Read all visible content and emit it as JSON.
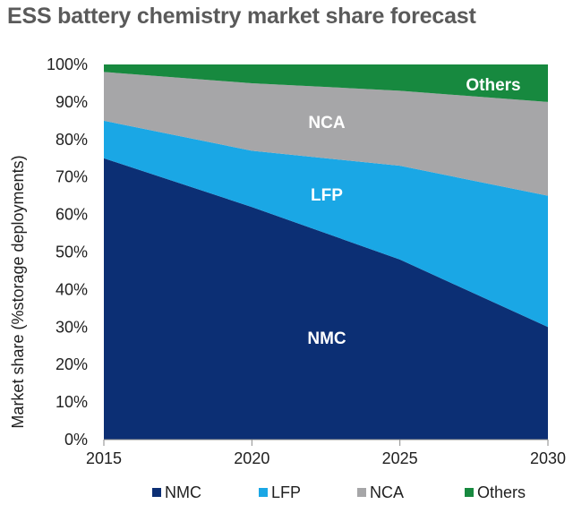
{
  "chart_data": {
    "type": "area",
    "title": "ESS battery chemistry market share forecast",
    "xlabel": "",
    "ylabel": "Market share (%storage deployments)",
    "x": [
      2015,
      2020,
      2025,
      2030
    ],
    "ylim": [
      0,
      100
    ],
    "yticks": [
      "0%",
      "10%",
      "20%",
      "30%",
      "40%",
      "50%",
      "60%",
      "70%",
      "80%",
      "90%",
      "100%"
    ],
    "xticks": [
      "2015",
      "2020",
      "2025",
      "2030"
    ],
    "stacked": true,
    "series": [
      {
        "name": "NMC",
        "values": [
          75,
          62,
          48,
          30
        ],
        "color": "#0c2f74"
      },
      {
        "name": "LFP",
        "values": [
          10,
          15,
          25,
          35
        ],
        "color": "#1aa7e5"
      },
      {
        "name": "NCA",
        "values": [
          13,
          18,
          20,
          25
        ],
        "color": "#a6a6a8"
      },
      {
        "name": "Others",
        "values": [
          2,
          5,
          7,
          10
        ],
        "color": "#17893f"
      }
    ],
    "area_labels": [
      "NMC",
      "LFP",
      "NCA",
      "Others"
    ],
    "legend_position": "bottom"
  }
}
